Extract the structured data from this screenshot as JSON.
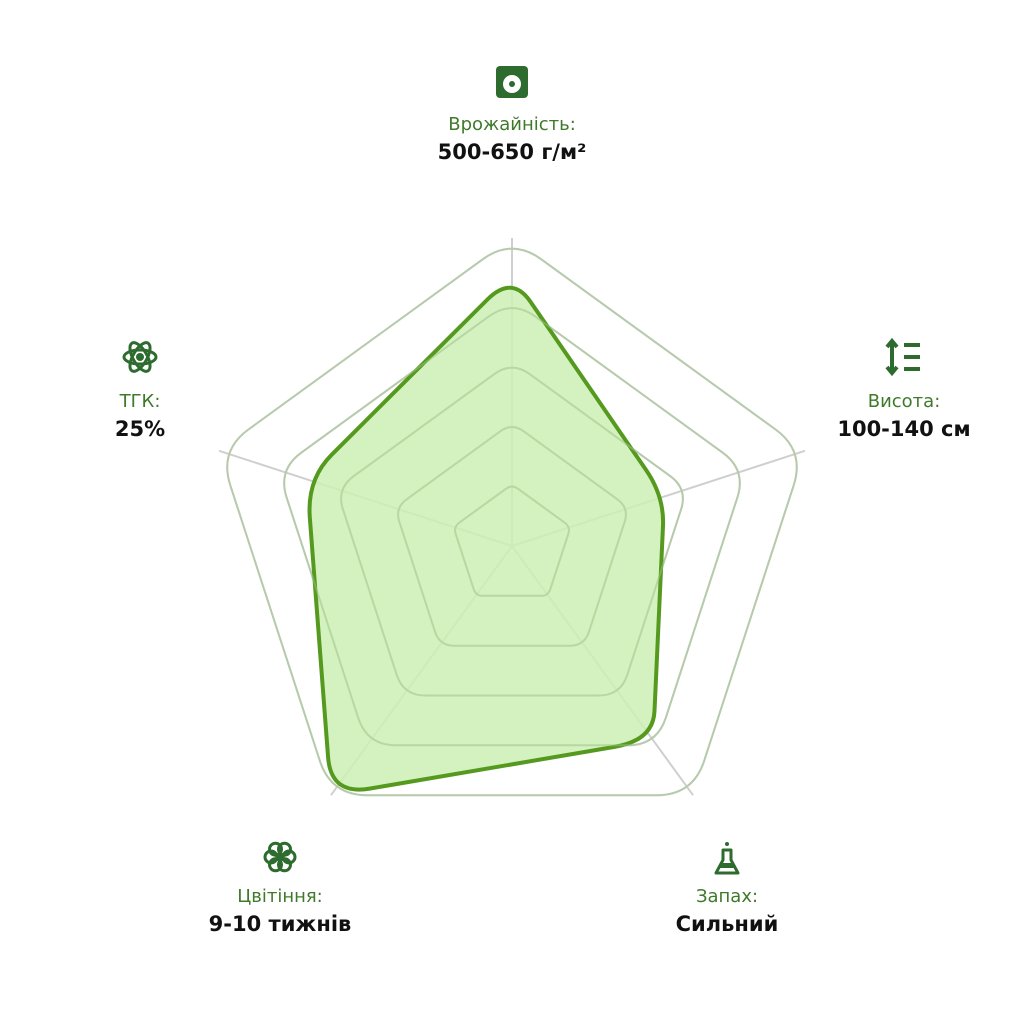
{
  "chart_data": {
    "type": "radar",
    "categories": [
      "Врожайність:",
      "Висота:",
      "Запах:",
      "Цвітіння:",
      "ТГК:"
    ],
    "details": [
      "500-650 г/м²",
      "100-140 см",
      "Сильний",
      "9-10 тижнів",
      "25%"
    ],
    "values": [
      4.4,
      2.6,
      3.9,
      5.0,
      3.5
    ],
    "ylim": [
      0,
      5
    ],
    "yticks": [
      1,
      2,
      3,
      4,
      5
    ],
    "grid": true,
    "color": "#559a1f",
    "fill": "#cdf0b4"
  }
}
